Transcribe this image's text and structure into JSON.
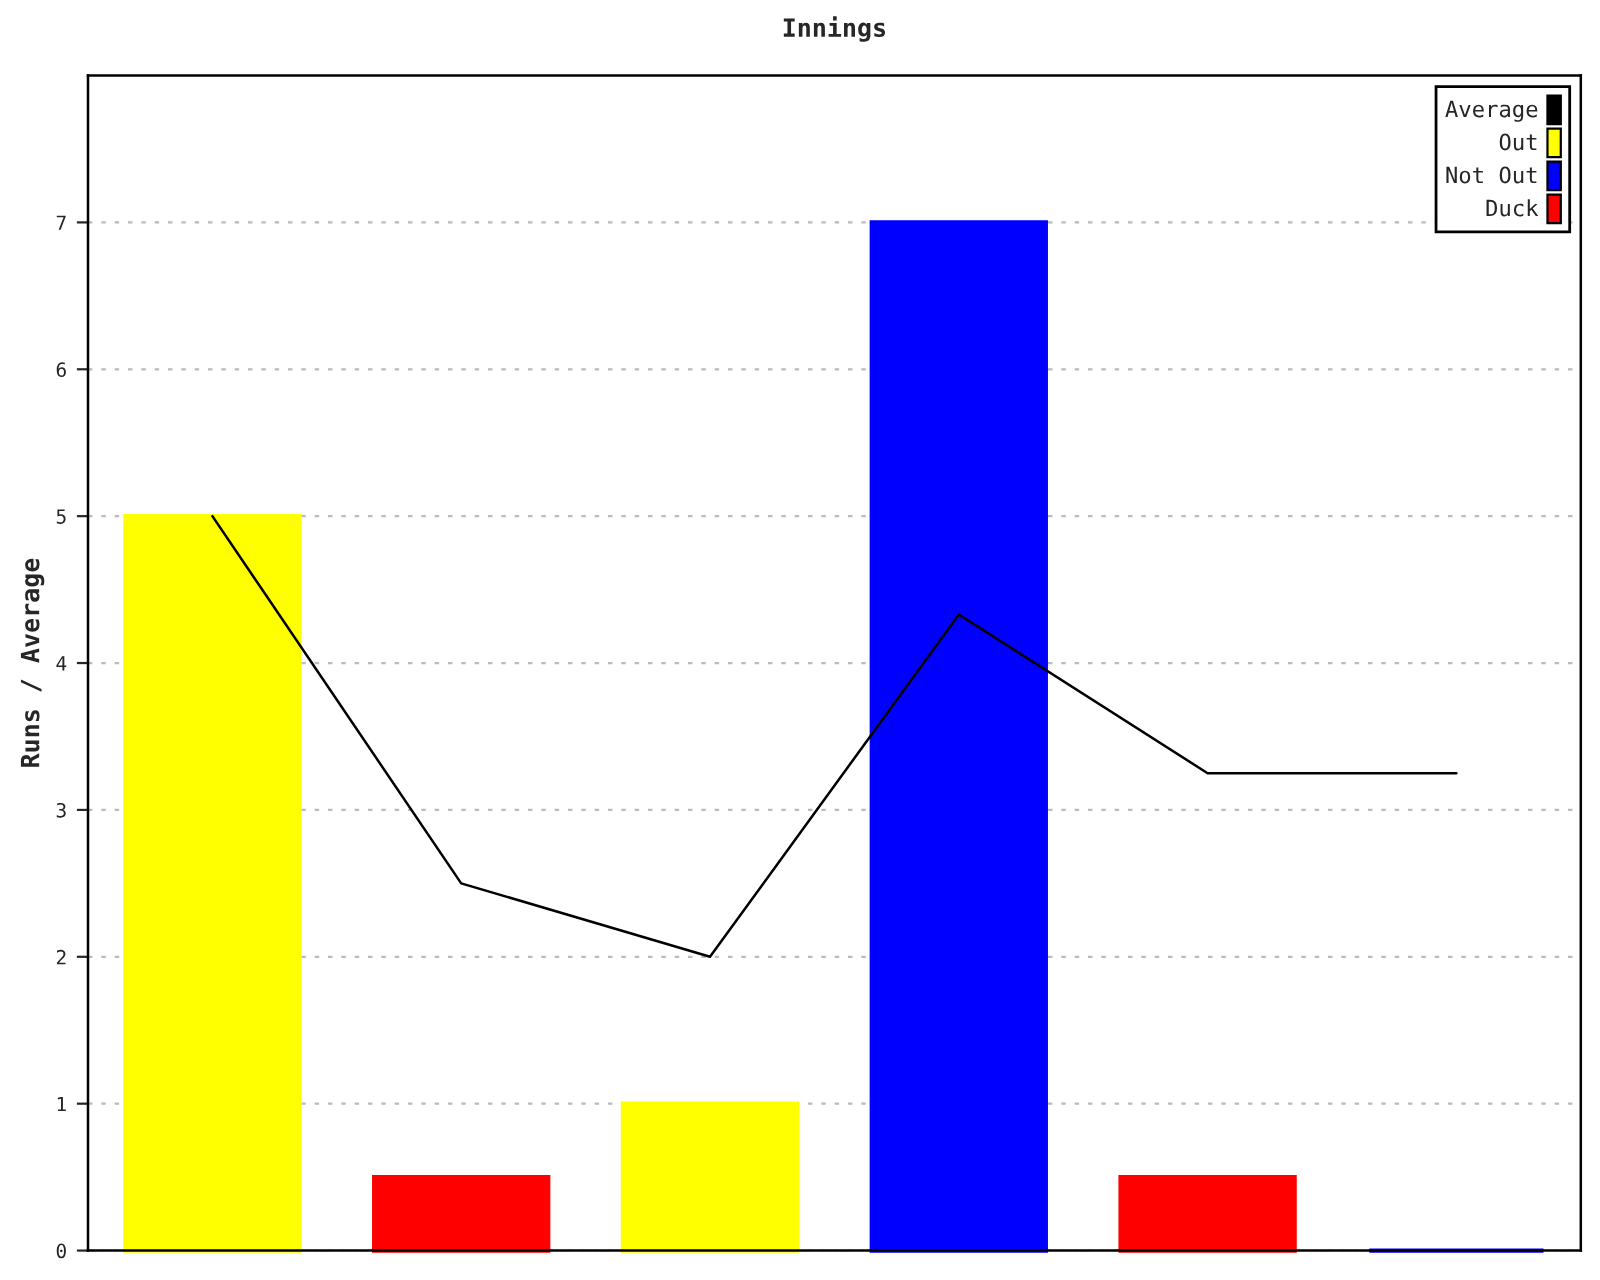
{
  "chart_data": {
    "type": "bar",
    "title": "Innings",
    "ylabel": "Runs / Average",
    "categories": [
      null,
      null,
      null,
      null,
      null,
      null
    ],
    "series": [
      {
        "name": "Average",
        "type": "line",
        "color": "#000000",
        "values": [
          5,
          2.5,
          2,
          4.33,
          3.25,
          3.25
        ]
      },
      {
        "name": "Out",
        "color": "#ffff00",
        "values": [
          5,
          null,
          1,
          null,
          null,
          null
        ]
      },
      {
        "name": "Not Out",
        "color": "#0000ff",
        "values": [
          null,
          null,
          null,
          7,
          null,
          0
        ]
      },
      {
        "name": "Duck",
        "color": "#ff0000",
        "values": [
          null,
          0.5,
          null,
          null,
          0.5,
          null
        ]
      }
    ],
    "ylim": [
      0,
      8
    ],
    "yticks": [
      0,
      1,
      2,
      3,
      4,
      5,
      6,
      7
    ],
    "grid": "y",
    "legend": "top right"
  }
}
